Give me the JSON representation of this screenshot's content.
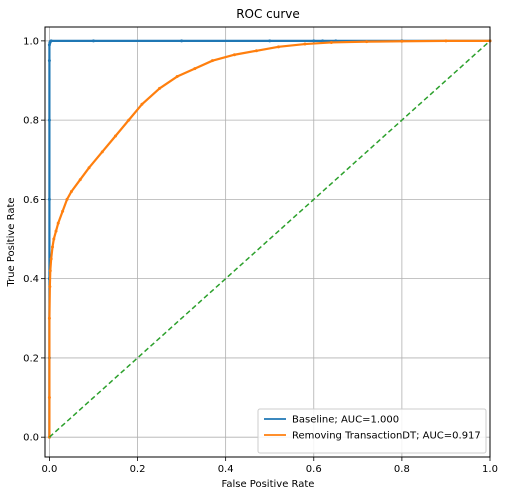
{
  "chart_data": {
    "type": "line",
    "title": "ROC curve",
    "xlabel": "False Positive Rate",
    "ylabel": "True Positive Rate",
    "xlim": [
      -0.01,
      1.0
    ],
    "ylim": [
      -0.05,
      1.035
    ],
    "xticks": [
      "0.0",
      "0.2",
      "0.4",
      "0.6",
      "0.8",
      "1.0"
    ],
    "yticks": [
      "0.0",
      "0.2",
      "0.4",
      "0.6",
      "0.8",
      "1.0"
    ],
    "grid": true,
    "legend_position": "lower-right",
    "series": [
      {
        "name": "Baseline; AUC=1.000",
        "color": "#1f77b4",
        "marker": "dot",
        "x": [
          0.0,
          0.0,
          0.0,
          0.0,
          0.0,
          0.0,
          0.0,
          0.001,
          0.002,
          0.004,
          0.1,
          0.3,
          0.5,
          0.6,
          0.62,
          0.65,
          0.8,
          1.0
        ],
        "y": [
          0.0,
          0.2,
          0.4,
          0.6,
          0.8,
          0.95,
          0.99,
          0.995,
          0.998,
          1.0,
          1.0,
          1.0,
          1.0,
          1.0,
          1.0,
          1.0,
          1.0,
          1.0
        ]
      },
      {
        "name": "Removing TransactionDT; AUC=0.917",
        "color": "#ff7f0e",
        "marker": "dot",
        "x": [
          0.0,
          0.0,
          0.0,
          0.001,
          0.002,
          0.004,
          0.007,
          0.01,
          0.015,
          0.02,
          0.03,
          0.04,
          0.05,
          0.07,
          0.09,
          0.12,
          0.15,
          0.18,
          0.21,
          0.25,
          0.29,
          0.33,
          0.37,
          0.42,
          0.47,
          0.52,
          0.58,
          0.64,
          0.72,
          0.8,
          0.9,
          1.0
        ],
        "y": [
          0.0,
          0.1,
          0.3,
          0.38,
          0.42,
          0.45,
          0.48,
          0.5,
          0.52,
          0.54,
          0.57,
          0.6,
          0.62,
          0.65,
          0.68,
          0.72,
          0.76,
          0.8,
          0.84,
          0.88,
          0.91,
          0.93,
          0.95,
          0.965,
          0.975,
          0.985,
          0.992,
          0.996,
          0.998,
          0.999,
          1.0,
          1.0
        ]
      },
      {
        "name": "",
        "color": "#2ca02c",
        "style": "dashed",
        "x": [
          0.0,
          1.0
        ],
        "y": [
          0.0,
          1.0
        ]
      }
    ]
  }
}
